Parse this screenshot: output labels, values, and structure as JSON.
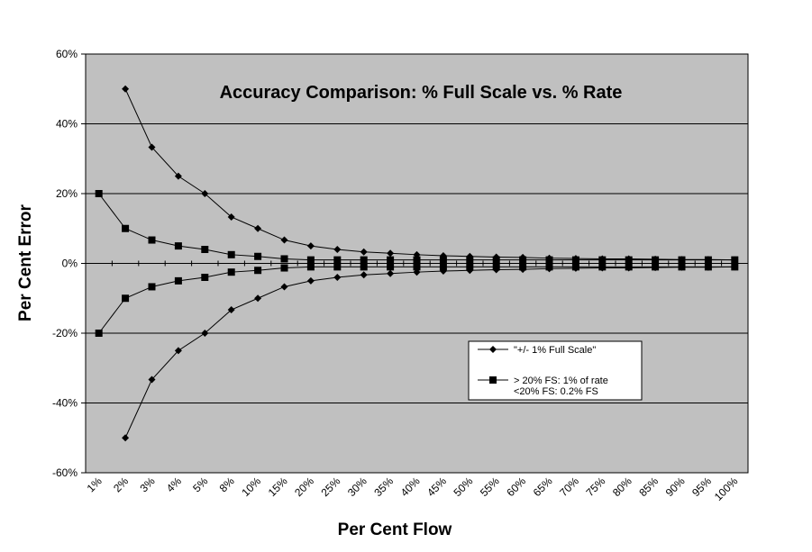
{
  "chart_data": {
    "type": "line",
    "title": "Accuracy Comparison: % Full Scale vs. % Rate",
    "xlabel": "Per Cent Flow",
    "ylabel": "Per Cent Error",
    "categories": [
      "1%",
      "2%",
      "3%",
      "4%",
      "5%",
      "8%",
      "10%",
      "15%",
      "20%",
      "25%",
      "30%",
      "35%",
      "40%",
      "45%",
      "50%",
      "55%",
      "60%",
      "65%",
      "70%",
      "75%",
      "80%",
      "85%",
      "90%",
      "95%",
      "100%"
    ],
    "yticks": [
      "-60%",
      "-40%",
      "-20%",
      "0%",
      "20%",
      "40%",
      "60%"
    ],
    "ylim": [
      -60,
      60
    ],
    "grid": true,
    "background_color": "#c0c0c0",
    "series": [
      {
        "name": "\"+/- 1% Full Scale\"",
        "marker": "diamond",
        "values_upper": [
          null,
          50,
          33.3,
          25,
          20,
          13.3,
          10,
          6.7,
          5,
          4,
          3.3,
          2.9,
          2.5,
          2.2,
          2,
          1.8,
          1.7,
          1.5,
          1.4,
          1.3,
          1.3,
          1.2,
          1.1,
          1.1,
          1
        ],
        "values_lower": [
          null,
          -50,
          -33.3,
          -25,
          -20,
          -13.3,
          -10,
          -6.7,
          -5,
          -4,
          -3.3,
          -2.9,
          -2.5,
          -2.2,
          -2,
          -1.8,
          -1.7,
          -1.5,
          -1.4,
          -1.3,
          -1.3,
          -1.2,
          -1.1,
          -1.1,
          -1
        ]
      },
      {
        "name": "> 20% FS: 1% of rate",
        "name_line2": "<20% FS: 0.2% FS",
        "marker": "square",
        "values_upper": [
          20,
          10,
          6.7,
          5,
          4,
          2.5,
          2,
          1.3,
          1,
          1,
          1,
          1,
          1,
          1,
          1,
          1,
          1,
          1,
          1,
          1,
          1,
          1,
          1,
          1,
          1
        ],
        "values_lower": [
          -20,
          -10,
          -6.7,
          -5,
          -4,
          -2.5,
          -2,
          -1.3,
          -1,
          -1,
          -1,
          -1,
          -1,
          -1,
          -1,
          -1,
          -1,
          -1,
          -1,
          -1,
          -1,
          -1,
          -1,
          -1,
          -1
        ]
      }
    ],
    "legend_position": "lower-right"
  }
}
